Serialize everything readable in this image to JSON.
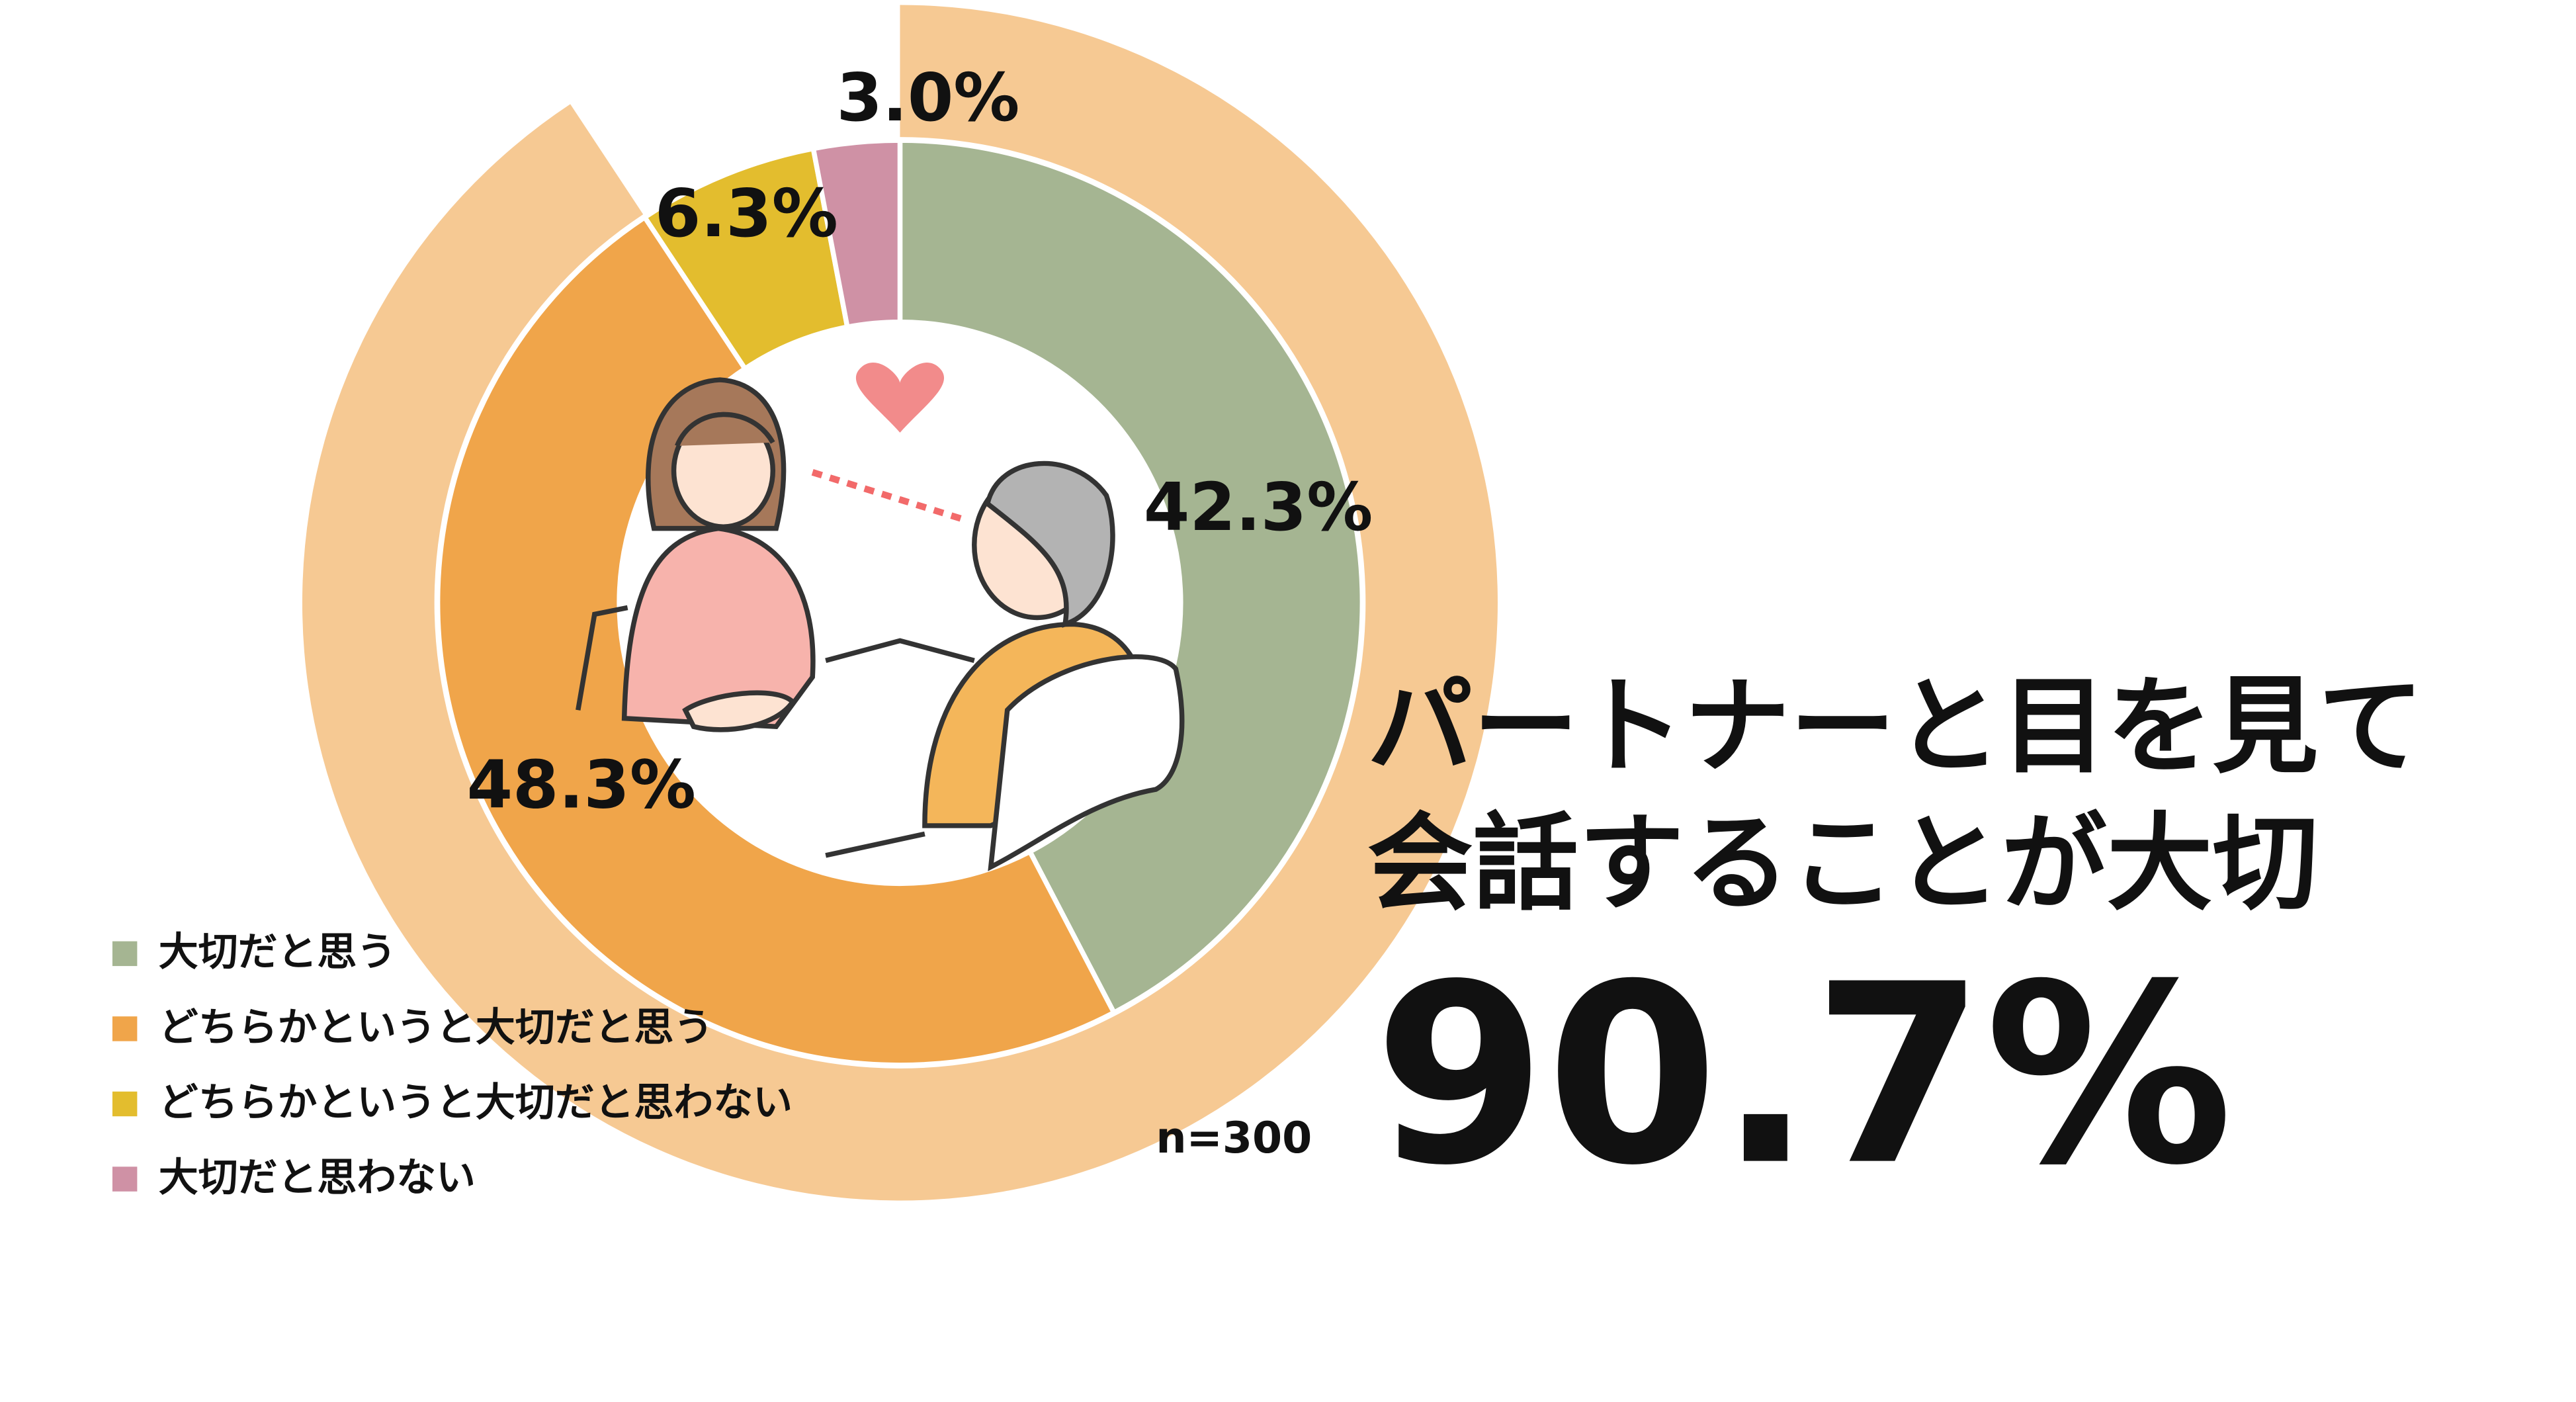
{
  "chart_data": {
    "type": "donut",
    "categories": [
      "大切だと思う",
      "どちらかというと大切だと思う",
      "どちらかというと大切だと思わない",
      "大切だと思わない"
    ],
    "values": [
      42.3,
      48.3,
      6.3,
      3.0
    ],
    "value_labels": [
      "42.3%",
      "48.3%",
      "6.3%",
      "3.0%"
    ],
    "colors": [
      "#a5b592",
      "#f0a54a",
      "#e3bd2e",
      "#cf91a5"
    ],
    "highlight": {
      "value": 90.7,
      "label": "90.7%",
      "color": "#f6c993"
    },
    "headline": [
      "パートナーと目を見て",
      "会話することが大切"
    ],
    "sample_size": "n=300"
  }
}
